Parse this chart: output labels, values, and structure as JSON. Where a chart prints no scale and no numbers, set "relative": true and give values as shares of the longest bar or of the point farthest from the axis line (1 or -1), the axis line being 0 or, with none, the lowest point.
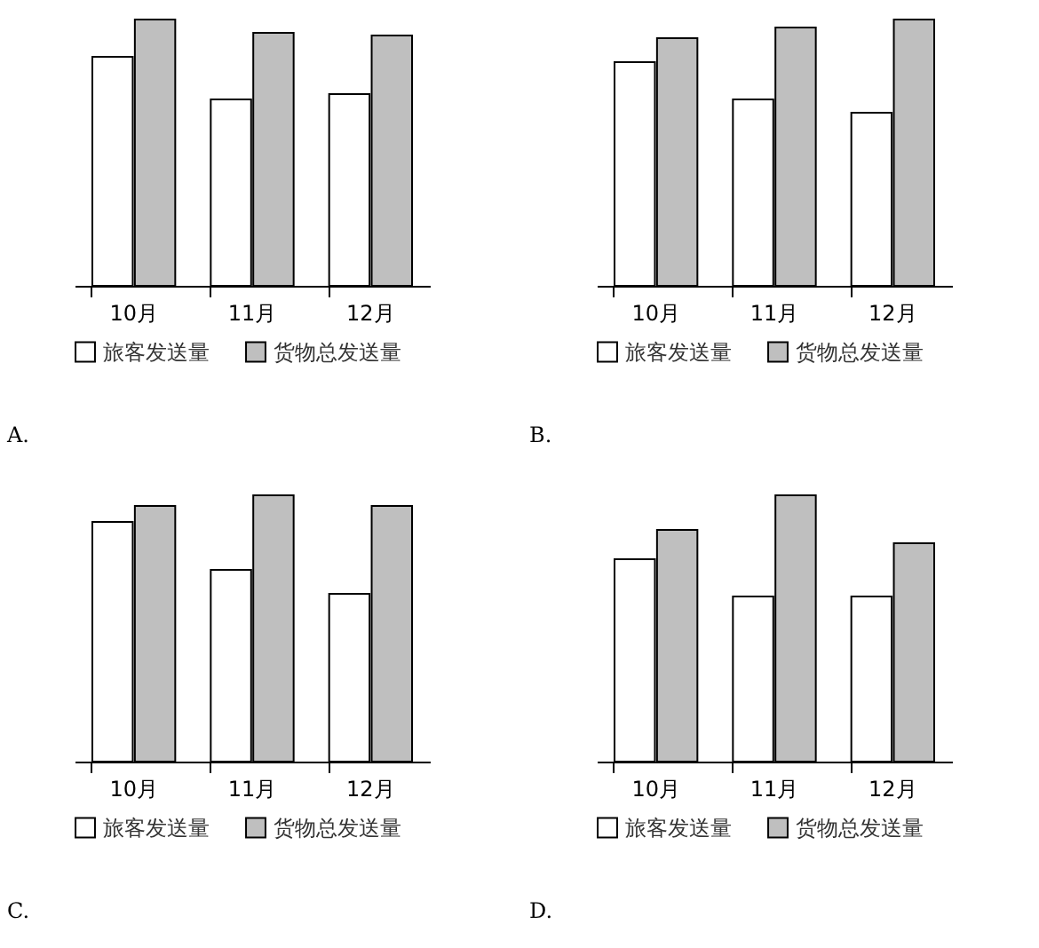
{
  "chart_data": [
    {
      "type": "bar",
      "relative": true,
      "categories": [
        "10月",
        "11月",
        "12月"
      ],
      "legend": "bottom",
      "annotations": [
        "A."
      ],
      "series": [
        {
          "name": "旅客发送量",
          "color": "#ffffff",
          "values": [
            0.86,
            0.7,
            0.72
          ]
        },
        {
          "name": "货物总发送量",
          "color": "#bfbfbf",
          "values": [
            1,
            0.95,
            0.94
          ]
        }
      ]
    },
    {
      "type": "bar",
      "relative": true,
      "categories": [
        "10月",
        "11月",
        "12月"
      ],
      "legend": "bottom",
      "annotations": [
        "B."
      ],
      "series": [
        {
          "name": "旅客发送量",
          "color": "#ffffff",
          "values": [
            0.84,
            0.7,
            0.65
          ]
        },
        {
          "name": "货物总发送量",
          "color": "#bfbfbf",
          "values": [
            0.93,
            0.97,
            1
          ]
        }
      ]
    },
    {
      "type": "bar",
      "relative": true,
      "categories": [
        "10月",
        "11月",
        "12月"
      ],
      "legend": "bottom",
      "annotations": [
        "C."
      ],
      "series": [
        {
          "name": "旅客发送量",
          "color": "#ffffff",
          "values": [
            0.9,
            0.72,
            0.63
          ]
        },
        {
          "name": "货物总发送量",
          "color": "#bfbfbf",
          "values": [
            0.96,
            1,
            0.96
          ]
        }
      ]
    },
    {
      "type": "bar",
      "relative": true,
      "categories": [
        "10月",
        "11月",
        "12月"
      ],
      "legend": "bottom",
      "annotations": [
        "D."
      ],
      "series": [
        {
          "name": "旅客发送量",
          "color": "#ffffff",
          "values": [
            0.76,
            0.62,
            0.62
          ]
        },
        {
          "name": "货物总发送量",
          "color": "#bfbfbf",
          "values": [
            0.87,
            1,
            0.82
          ]
        }
      ]
    }
  ]
}
